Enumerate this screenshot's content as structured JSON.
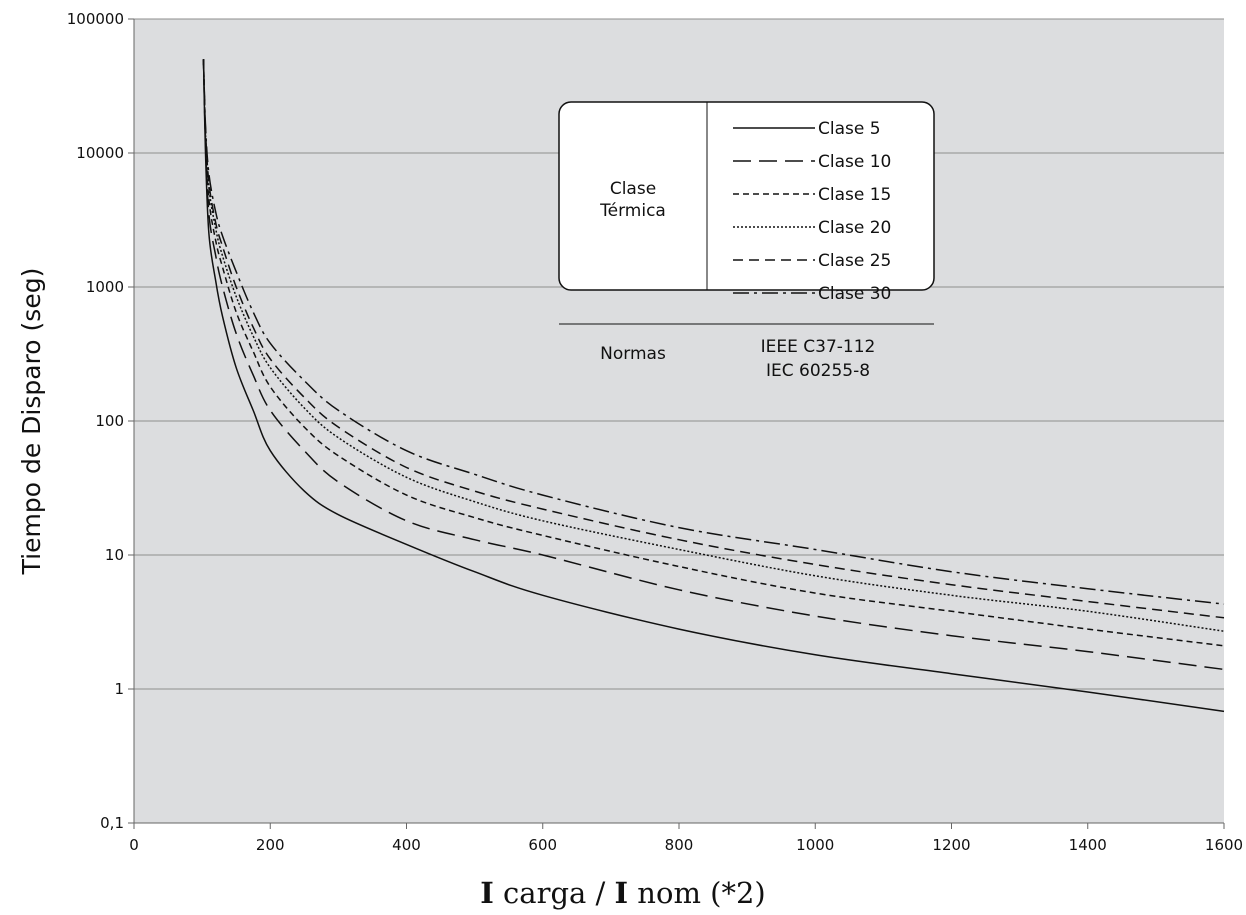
{
  "chart_data": {
    "type": "line",
    "title": "",
    "xlabel_parts": [
      "I",
      " carga / ",
      "I",
      " nom (*2)"
    ],
    "xlabel": "I carga / I nom (*2)",
    "ylabel": "Tiempo de Disparo (seg)",
    "xlim": [
      0,
      1600
    ],
    "ylim": [
      0.1,
      100000
    ],
    "yscale": "log",
    "grid": "horizontal",
    "background": "#dcdddf",
    "x_ticks": [
      0,
      200,
      400,
      600,
      800,
      1000,
      1200,
      1400,
      1600
    ],
    "x_tick_labels": [
      "0",
      "200",
      "400",
      "600",
      "800",
      "1000",
      "1200",
      "1400",
      "1600"
    ],
    "y_ticks": [
      0.1,
      1,
      10,
      100,
      1000,
      10000,
      100000
    ],
    "y_tick_labels": [
      "0,1",
      "1",
      "10",
      "100",
      "1000",
      "10000",
      "100000"
    ],
    "series": [
      {
        "name": "Clase 5",
        "dash": "solid",
        "x": [
          102,
          105,
          110,
          120,
          130,
          150,
          175,
          200,
          250,
          300,
          400,
          500,
          600,
          800,
          1000,
          1200,
          1400,
          1600
        ],
        "y": [
          50000,
          10000,
          2500,
          1100,
          600,
          250,
          120,
          60,
          30,
          20,
          12,
          7.5,
          5,
          2.8,
          1.8,
          1.3,
          0.95,
          0.68
        ]
      },
      {
        "name": "Clase 10",
        "dash": "long",
        "x": [
          102,
          105,
          110,
          120,
          130,
          150,
          175,
          200,
          250,
          300,
          400,
          500,
          600,
          800,
          1000,
          1200,
          1400,
          1600
        ],
        "y": [
          50000,
          12000,
          3500,
          1700,
          1000,
          450,
          220,
          120,
          60,
          35,
          18,
          13,
          10,
          5.5,
          3.5,
          2.5,
          1.9,
          1.4
        ]
      },
      {
        "name": "Clase 15",
        "dash": "short",
        "x": [
          102,
          105,
          110,
          120,
          130,
          150,
          175,
          200,
          250,
          300,
          400,
          500,
          600,
          800,
          1000,
          1200,
          1400,
          1600
        ],
        "y": [
          50000,
          13000,
          4500,
          2200,
          1400,
          650,
          330,
          180,
          90,
          55,
          28,
          19,
          14,
          8.2,
          5.2,
          3.8,
          2.8,
          2.1
        ]
      },
      {
        "name": "Clase 20",
        "dash": "dotted",
        "x": [
          102,
          105,
          110,
          120,
          130,
          150,
          175,
          200,
          250,
          300,
          400,
          500,
          600,
          800,
          1000,
          1200,
          1400,
          1600
        ],
        "y": [
          50000,
          14000,
          5500,
          2700,
          1700,
          850,
          430,
          250,
          125,
          75,
          38,
          25,
          18,
          11,
          7,
          5,
          3.8,
          2.7
        ]
      },
      {
        "name": "Clase 25",
        "dash": "medium",
        "x": [
          102,
          105,
          110,
          120,
          130,
          150,
          175,
          200,
          250,
          300,
          400,
          500,
          600,
          800,
          1000,
          1200,
          1400,
          1600
        ],
        "y": [
          50000,
          15000,
          6000,
          3000,
          2000,
          1000,
          500,
          290,
          150,
          90,
          45,
          30,
          22,
          13,
          8.5,
          6,
          4.5,
          3.4
        ]
      },
      {
        "name": "Clase 30",
        "dash": "dashdot",
        "x": [
          102,
          105,
          110,
          120,
          130,
          150,
          175,
          200,
          250,
          300,
          400,
          500,
          600,
          800,
          1000,
          1200,
          1400,
          1600
        ],
        "y": [
          50000,
          16000,
          7000,
          3600,
          2400,
          1300,
          650,
          380,
          200,
          120,
          60,
          40,
          28,
          16,
          11,
          7.5,
          5.6,
          4.3
        ]
      }
    ],
    "legend_table": {
      "rows": [
        {
          "header_lines": [
            "Clase",
            "Térmica"
          ],
          "entries": [
            "Clase 5",
            "Clase 10",
            "Clase 15",
            "Clase 20",
            "Clase 25",
            "Clase 30"
          ]
        },
        {
          "header": "Normas",
          "lines": [
            "IEEE C37-112",
            "IEC 60255-8"
          ]
        }
      ]
    }
  }
}
